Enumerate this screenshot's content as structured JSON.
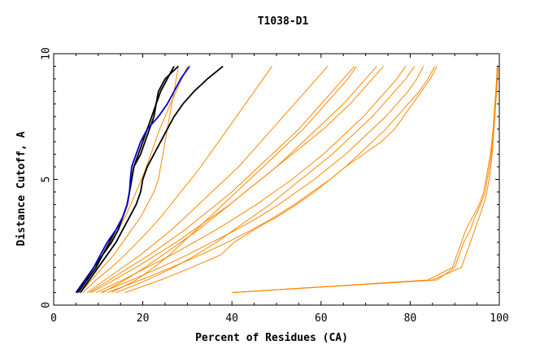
{
  "chart_data": {
    "type": "line",
    "title": "T1038-D1",
    "xlabel": "Percent of Residues (CA)",
    "ylabel": "Distance Cutoff, A",
    "xlim": [
      0,
      100
    ],
    "ylim": [
      0,
      10
    ],
    "xticks": [
      "0",
      "20",
      "40",
      "60",
      "80",
      "100"
    ],
    "yticks": [
      "0",
      "5",
      "10"
    ],
    "grid": false,
    "colors": {
      "bulk": "#ff8800",
      "highlight_black": "#000000",
      "highlight_blue": "#0000cc",
      "frame": "#000000"
    },
    "cutoffs": [
      0.5,
      1.0,
      1.5,
      2.0,
      2.5,
      3.0,
      3.5,
      4.0,
      4.5,
      5.0,
      5.5,
      6.0,
      6.5,
      7.0,
      7.5,
      8.0,
      8.5,
      9.0,
      9.5
    ],
    "series": [
      {
        "color": "bulk",
        "x": [
          5.3,
          7.0,
          9.0,
          11.0,
          12.8,
          14.5,
          16.0,
          17.3,
          18.5,
          19.7,
          20.8,
          21.8,
          22.8,
          23.8,
          25.0,
          26.2,
          27.5,
          28.8,
          30.0
        ]
      },
      {
        "color": "bulk",
        "x": [
          6.5,
          9.5,
          13.0,
          16.0,
          18.8,
          21.5,
          24.0,
          26.3,
          28.5,
          30.8,
          33.0,
          35.0,
          37.0,
          39.0,
          41.0,
          43.0,
          45.0,
          47.0,
          49.0
        ]
      },
      {
        "color": "bulk",
        "x": [
          7.5,
          11.5,
          15.5,
          19.5,
          23.0,
          26.5,
          29.5,
          32.5,
          35.5,
          38.5,
          41.5,
          44.0,
          46.5,
          49.0,
          51.5,
          54.0,
          56.5,
          59.0,
          61.5
        ]
      },
      {
        "color": "bulk",
        "x": [
          8.5,
          13.5,
          18.5,
          23.0,
          27.5,
          31.5,
          35.5,
          39.5,
          43.0,
          46.5,
          50.0,
          53.0,
          56.0,
          59.0,
          62.0,
          65.0,
          67.5,
          70.0,
          72.5
        ]
      },
      {
        "color": "bulk",
        "x": [
          9.5,
          15.5,
          21.0,
          26.5,
          31.5,
          36.5,
          41.0,
          45.5,
          49.5,
          53.5,
          57.0,
          60.5,
          63.5,
          66.5,
          69.5,
          72.0,
          74.5,
          77.0,
          79.0
        ]
      },
      {
        "color": "bulk",
        "x": [
          10.5,
          17.5,
          24.0,
          30.0,
          35.5,
          41.0,
          46.0,
          50.5,
          54.5,
          58.5,
          62.0,
          65.5,
          68.5,
          71.5,
          74.5,
          77.0,
          79.5,
          81.5,
          83.0
        ]
      },
      {
        "color": "bulk",
        "x": [
          12.0,
          19.5,
          26.5,
          33.0,
          39.0,
          44.5,
          49.5,
          54.0,
          58.0,
          62.0,
          65.5,
          68.5,
          71.5,
          74.5,
          77.0,
          79.5,
          82.0,
          84.0,
          85.5
        ]
      },
      {
        "color": "bulk",
        "x": [
          8.0,
          12.5,
          17.0,
          21.5,
          25.5,
          29.5,
          33.0,
          36.5,
          40.0,
          43.0,
          46.0,
          49.0,
          52.0,
          55.0,
          57.5,
          60.0,
          62.5,
          65.0,
          67.5
        ]
      },
      {
        "color": "bulk",
        "x": [
          14.0,
          21.0,
          27.0,
          32.0,
          36.5,
          40.5,
          44.5,
          48.5,
          52.0,
          55.5,
          59.0,
          62.5,
          65.5,
          68.5,
          71.5,
          74.0,
          76.5,
          79.0,
          81.0
        ]
      },
      {
        "color": "bulk",
        "x": [
          16.0,
          24.0,
          31.0,
          37.5,
          40.5,
          45.0,
          50.0,
          54.5,
          58.5,
          62.0,
          65.5,
          69.5,
          73.5,
          76.5,
          78.5,
          80.5,
          82.5,
          84.5,
          86.0
        ]
      },
      {
        "color": "bulk",
        "x": [
          13.0,
          18.5,
          22.5,
          26.0,
          29.0,
          32.0,
          35.0,
          38.0,
          41.0,
          44.0,
          47.0,
          50.0,
          53.0,
          56.0,
          58.5,
          61.0,
          63.5,
          66.0,
          68.0
        ]
      },
      {
        "color": "bulk",
        "x": [
          6.0,
          8.5,
          11.0,
          13.5,
          15.5,
          17.5,
          19.5,
          21.0,
          22.5,
          23.5,
          24.0,
          24.5,
          25.0,
          25.5,
          26.0,
          26.5,
          27.0,
          27.5,
          28.0
        ]
      },
      {
        "color": "bulk",
        "x": [
          11.0,
          16.0,
          20.5,
          24.5,
          28.5,
          32.5,
          36.0,
          39.5,
          43.0,
          46.5,
          50.0,
          53.5,
          57.0,
          60.5,
          63.5,
          66.5,
          69.0,
          71.5,
          74.0
        ]
      },
      {
        "color": "bulk",
        "x": [
          40.0,
          84.0,
          89.5,
          90.5,
          91.5,
          92.5,
          94.0,
          95.5,
          96.5,
          97.0,
          97.5,
          98.0,
          98.3,
          98.6,
          98.8,
          99.0,
          99.2,
          99.4,
          99.5
        ]
      },
      {
        "color": "bulk",
        "x": [
          40.0,
          86.0,
          90.0,
          91.0,
          92.0,
          93.5,
          94.5,
          95.8,
          96.8,
          97.3,
          97.8,
          98.2,
          98.5,
          98.7,
          98.9,
          99.1,
          99.3,
          99.5,
          99.6
        ]
      },
      {
        "color": "bulk",
        "x": [
          40.0,
          85.0,
          91.5,
          92.5,
          93.5,
          94.5,
          95.5,
          96.5,
          97.2,
          97.7,
          98.1,
          98.4,
          98.6,
          98.8,
          99.0,
          99.2,
          99.4,
          99.6,
          99.7
        ]
      },
      {
        "color": "highlight_black",
        "x": [
          5.5,
          7.5,
          9.5,
          11.0,
          12.5,
          14.0,
          15.5,
          16.5,
          17.0,
          17.5,
          18.0,
          19.0,
          20.0,
          21.0,
          22.0,
          23.0,
          24.0,
          25.5,
          27.0
        ]
      },
      {
        "color": "highlight_black",
        "x": [
          6.0,
          8.0,
          10.0,
          12.0,
          14.0,
          15.5,
          17.0,
          18.5,
          19.5,
          20.0,
          21.0,
          22.5,
          24.0,
          25.5,
          27.0,
          29.0,
          31.5,
          34.5,
          38.0
        ]
      },
      {
        "color": "highlight_black",
        "x": [
          5.0,
          7.0,
          9.0,
          11.0,
          13.0,
          14.5,
          15.5,
          16.5,
          17.0,
          17.5,
          18.0,
          19.5,
          20.5,
          21.5,
          22.5,
          23.0,
          23.5,
          25.0,
          28.0
        ]
      },
      {
        "color": "highlight_blue",
        "x": [
          5.2,
          7.2,
          9.0,
          10.5,
          12.0,
          14.0,
          15.5,
          16.5,
          17.0,
          17.2,
          17.5,
          18.5,
          19.5,
          21.0,
          23.5,
          25.5,
          27.0,
          28.5,
          30.5
        ]
      }
    ]
  }
}
